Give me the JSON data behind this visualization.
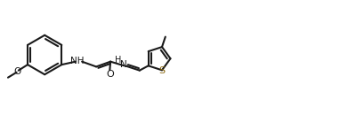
{
  "bg_color": "#ffffff",
  "line_color": "#1a1a1a",
  "s_color": "#8B6914",
  "lw": 1.5,
  "fs": 7.5,
  "figsize": [
    3.82,
    1.47
  ],
  "dpi": 100,
  "xlim": [
    0,
    100
  ],
  "ylim": [
    0,
    38
  ]
}
